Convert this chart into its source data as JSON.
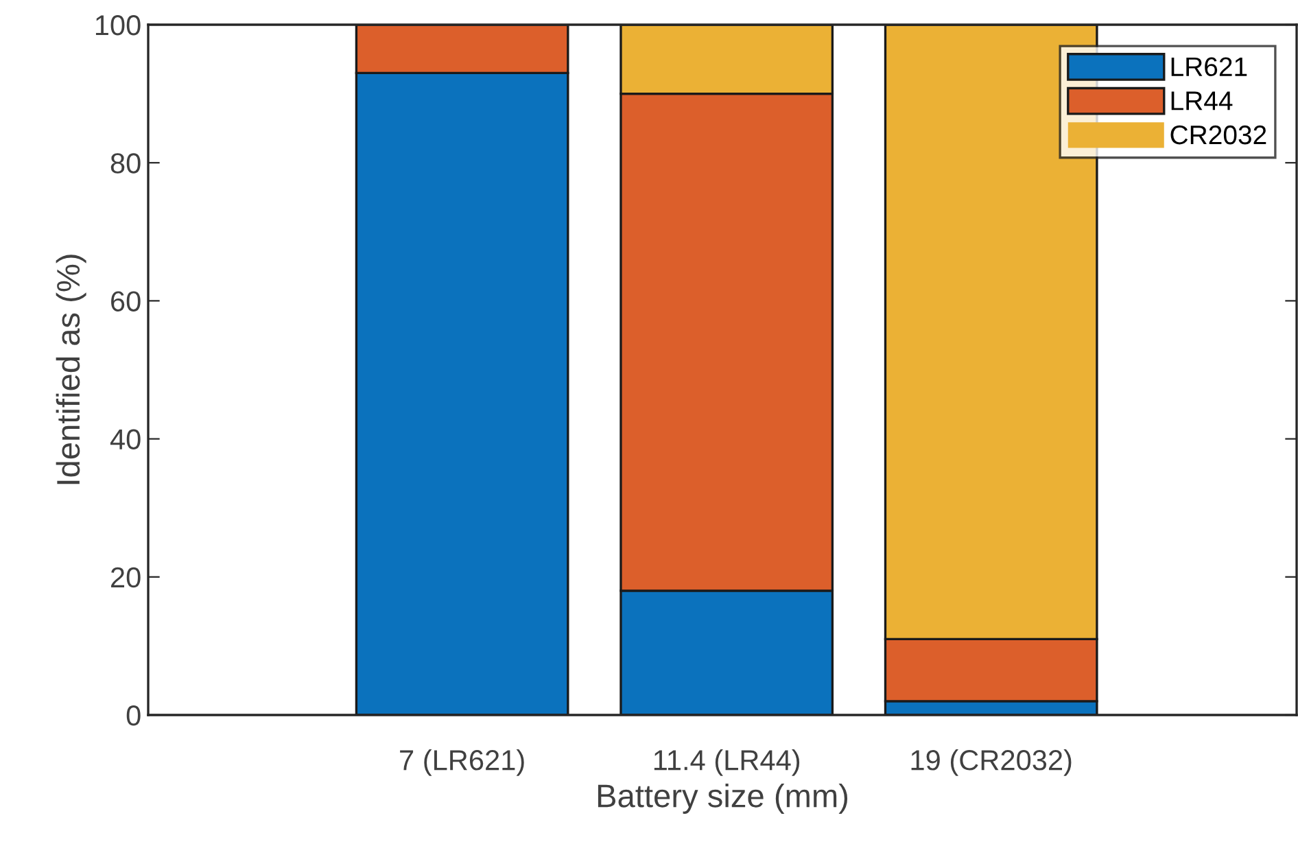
{
  "chart_data": {
    "type": "bar",
    "stacked": true,
    "xlabel": "Battery size (mm)",
    "ylabel": "Identified as (%)",
    "categories": [
      "7 (LR621)",
      "11.4 (LR44)",
      "19 (CR2032)"
    ],
    "series": [
      {
        "name": "LR621",
        "color": "#0b72bd",
        "values": [
          93,
          18,
          2
        ]
      },
      {
        "name": "LR44",
        "color": "#dc5f2b",
        "values": [
          7,
          72,
          9
        ]
      },
      {
        "name": "CR2032",
        "color": "#ebb135",
        "values": [
          0,
          10,
          89
        ]
      }
    ],
    "ylim": [
      0,
      100
    ],
    "yticks": [
      0,
      20,
      40,
      60,
      80,
      100
    ],
    "legend": "top right"
  }
}
